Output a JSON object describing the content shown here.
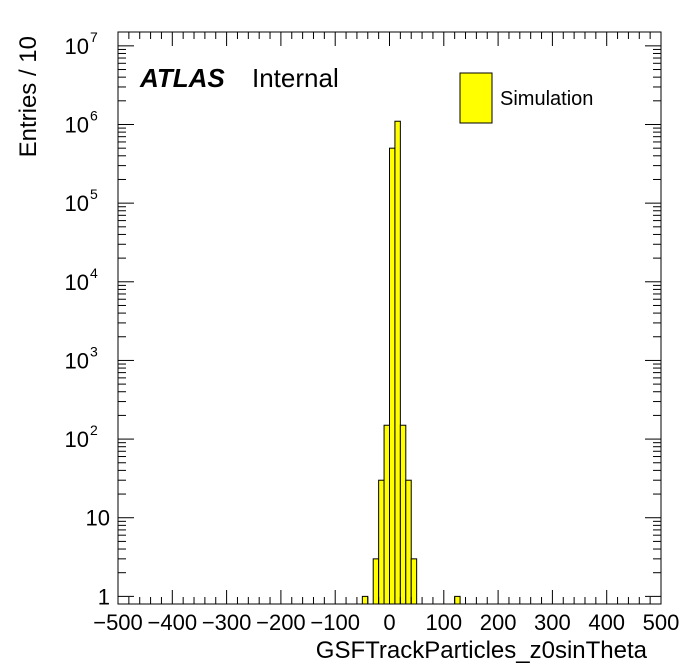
{
  "chart_data": {
    "type": "bar",
    "title": "",
    "xlabel": "GSFTrackParticles_z0sinTheta",
    "ylabel": "Entries / 10",
    "xlim": [
      -500,
      500
    ],
    "ylim": [
      0.8,
      15000000
    ],
    "yscale": "log",
    "bin_width": 10,
    "bins": [
      {
        "x0": -50,
        "x1": -40,
        "y": 1
      },
      {
        "x0": -30,
        "x1": -20,
        "y": 3
      },
      {
        "x0": -20,
        "x1": -10,
        "y": 30
      },
      {
        "x0": -10,
        "x1": 0,
        "y": 150
      },
      {
        "x0": 0,
        "x1": 10,
        "y": 500000
      },
      {
        "x0": 10,
        "x1": 20,
        "y": 1100000
      },
      {
        "x0": 20,
        "x1": 30,
        "y": 150
      },
      {
        "x0": 30,
        "x1": 40,
        "y": 30
      },
      {
        "x0": 40,
        "x1": 50,
        "y": 3
      },
      {
        "x0": 120,
        "x1": 130,
        "y": 1
      }
    ],
    "x_ticks": [
      "−500",
      "−400",
      "−300",
      "−200",
      "−100",
      "0",
      "100",
      "200",
      "300",
      "400",
      "500"
    ],
    "y_ticks": [
      {
        "value": 1,
        "base": "1",
        "exp": ""
      },
      {
        "value": 10,
        "base": "10",
        "exp": ""
      },
      {
        "value": 100,
        "base": "10",
        "exp": "2"
      },
      {
        "value": 1000,
        "base": "10",
        "exp": "3"
      },
      {
        "value": 10000,
        "base": "10",
        "exp": "4"
      },
      {
        "value": 100000,
        "base": "10",
        "exp": "5"
      },
      {
        "value": 1000000,
        "base": "10",
        "exp": "6"
      },
      {
        "value": 10000000,
        "base": "10",
        "exp": "7"
      }
    ],
    "legend": [
      {
        "name": "Simulation",
        "color": "#ffff00"
      }
    ],
    "legend_position": "top-right",
    "annotation": {
      "experiment": "ATLAS",
      "status": "Internal"
    },
    "fill_color": "#ffff00",
    "line_color": "#000000",
    "grid": false
  }
}
